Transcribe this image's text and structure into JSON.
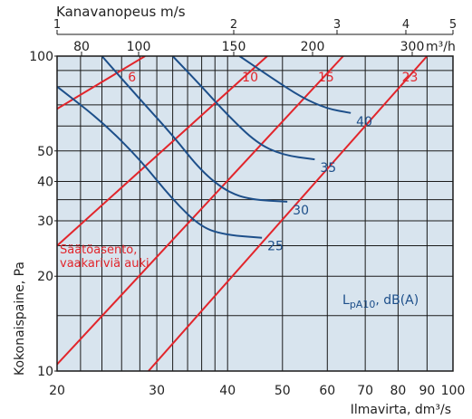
{
  "chart_data": {
    "type": "line",
    "title": "",
    "xlabel": "Ilmavirta, dm³/s",
    "ylabel": "Kokonaispaine, Pa",
    "x_scale": "log",
    "y_scale": "log",
    "xlim": [
      20,
      100
    ],
    "ylim": [
      10,
      100
    ],
    "x_ticks": [
      20,
      30,
      40,
      50,
      60,
      70,
      80,
      90,
      100
    ],
    "x_tick_labels": [
      "20",
      "30",
      "40",
      "50",
      "60",
      "70",
      "80",
      "90",
      "100"
    ],
    "x_tick_units": "dm³/s",
    "y_ticks": [
      10,
      20,
      30,
      40,
      50,
      100
    ],
    "y_tick_labels": [
      "10",
      "20",
      "30",
      "40",
      "50",
      "100"
    ],
    "top_axis_m3h": {
      "ticks": [
        80,
        100,
        150,
        200,
        300
      ],
      "labels": [
        "80",
        "100",
        "150",
        "200",
        "300"
      ],
      "unit": "m³/h"
    },
    "top_axis_velocity": {
      "label": "Kanavanopeus m/s",
      "ticks": [
        1,
        2,
        3,
        4,
        5
      ],
      "labels": [
        "1",
        "2",
        "3",
        "4",
        "5"
      ]
    },
    "grid": true,
    "background": "#d8e4ee",
    "damper_annotation": "Säätöasento, vaakariviä auki",
    "damper_series": [
      {
        "name": "6",
        "points": [
          [
            20,
            68
          ],
          [
            28.6,
            100
          ]
        ]
      },
      {
        "name": "10",
        "points": [
          [
            20,
            25
          ],
          [
            47,
            100
          ]
        ]
      },
      {
        "name": "15",
        "points": [
          [
            20,
            10.5
          ],
          [
            64,
            100
          ]
        ]
      },
      {
        "name": "23",
        "points": [
          [
            29,
            10
          ],
          [
            90,
            100
          ]
        ]
      }
    ],
    "sound_series": [
      {
        "name": "25",
        "points": [
          [
            20,
            80
          ],
          [
            24,
            62
          ],
          [
            28,
            47
          ],
          [
            32,
            35
          ],
          [
            36,
            28.5
          ],
          [
            40,
            27
          ],
          [
            46,
            26.5
          ]
        ]
      },
      {
        "name": "30",
        "points": [
          [
            24,
            100
          ],
          [
            28,
            73
          ],
          [
            32,
            56
          ],
          [
            36,
            43
          ],
          [
            40,
            37
          ],
          [
            44,
            35
          ],
          [
            51,
            34.5
          ]
        ]
      },
      {
        "name": "35",
        "points": [
          [
            32,
            100
          ],
          [
            36,
            80
          ],
          [
            40,
            65
          ],
          [
            45,
            53
          ],
          [
            50,
            48.5
          ],
          [
            57,
            47
          ]
        ]
      },
      {
        "name": "40",
        "points": [
          [
            42,
            100
          ],
          [
            48,
            85
          ],
          [
            54,
            74
          ],
          [
            60,
            68
          ],
          [
            66,
            66
          ]
        ]
      }
    ],
    "sound_label": "L_pA10, dB(A)",
    "colors": {
      "damper": "#e2252b",
      "sound": "#1d4f8a",
      "grid": "#1a1a1a",
      "text": "#222222"
    }
  }
}
